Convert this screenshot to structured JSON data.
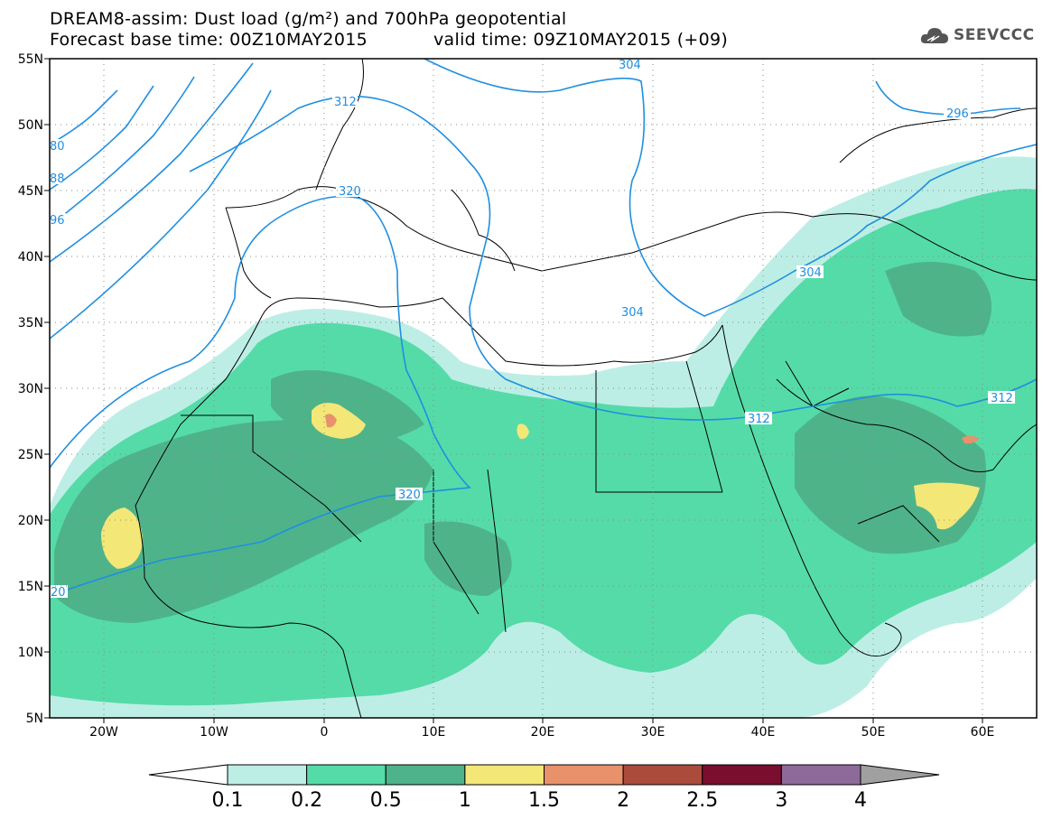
{
  "header": {
    "line1": "DREAM8-assim: Dust load (g/m²) and 700hPa geopotential",
    "line2": "Forecast base time: 00Z10MAY2015",
    "valid": "valid time: 09Z10MAY2015 (+09)"
  },
  "logo": {
    "text": "SEEVCCC",
    "icon": "cloud-logo-icon"
  },
  "axes": {
    "lat_labels": [
      "55N",
      "50N",
      "45N",
      "40N",
      "35N",
      "30N",
      "25N",
      "20N",
      "15N",
      "10N",
      "5N"
    ],
    "lon_labels": [
      "20W",
      "10W",
      "0",
      "10E",
      "20E",
      "30E",
      "40E",
      "50E",
      "60E"
    ]
  },
  "contours": [
    {
      "label": "304",
      "kind": "geopotential"
    },
    {
      "label": "312",
      "kind": "geopotential"
    },
    {
      "label": "320",
      "kind": "geopotential"
    },
    {
      "label": "296",
      "kind": "geopotential"
    },
    {
      "label": "80",
      "kind": "geopotential"
    },
    {
      "label": "88",
      "kind": "geopotential"
    },
    {
      "label": "96",
      "kind": "geopotential"
    },
    {
      "label": "20",
      "kind": "geopotential"
    }
  ],
  "colorbar": {
    "labels": [
      "0.1",
      "0.2",
      "0.5",
      "1",
      "1.5",
      "2",
      "2.5",
      "3",
      "4"
    ],
    "colors": [
      "#ffffff",
      "#bdeee5",
      "#55dba8",
      "#4fb38a",
      "#f3e778",
      "#e8916b",
      "#aa4b3c",
      "#7a0e2e",
      "#8e6a9b",
      "#a0a0a0"
    ]
  },
  "colors": {
    "contour": "#1f8fe0",
    "land_line": "#000000"
  }
}
